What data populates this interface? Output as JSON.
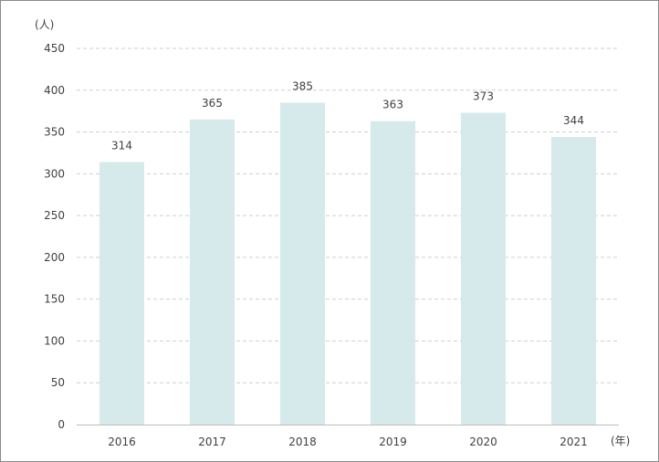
{
  "chart_data": {
    "type": "bar",
    "categories": [
      "2016",
      "2017",
      "2018",
      "2019",
      "2020",
      "2021"
    ],
    "values": [
      314,
      365,
      385,
      363,
      373,
      344
    ],
    "title": "",
    "xlabel": "(年)",
    "ylabel": "(人)",
    "ylim": [
      0,
      450
    ],
    "yticks": [
      0,
      50,
      100,
      150,
      200,
      250,
      300,
      350,
      400,
      450
    ],
    "grid": true,
    "bar_color": "#d6e9eb",
    "grid_color": "#cfcfcf",
    "axis_color": "#bdbdbd",
    "text_color": "#404040"
  }
}
